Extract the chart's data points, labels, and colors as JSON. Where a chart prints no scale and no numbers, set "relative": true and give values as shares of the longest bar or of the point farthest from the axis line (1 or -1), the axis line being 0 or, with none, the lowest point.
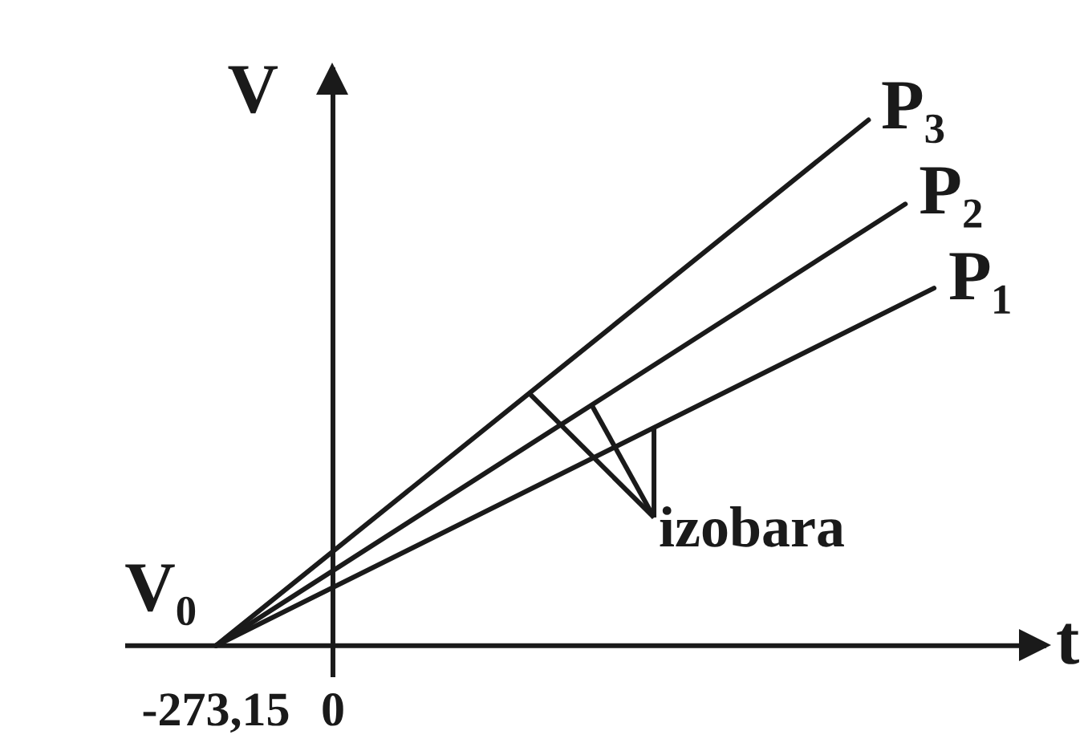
{
  "chart_data": {
    "type": "line",
    "relative": true,
    "xlabel": "t",
    "ylabel": "V",
    "xlim": [
      -485,
      1665
    ],
    "xticks": [
      {
        "value": -273.15,
        "label": "-273,15"
      },
      0
    ],
    "series": [
      {
        "name": "P₁",
        "color": "#1a1a1a",
        "x": [
          -273.15,
          1403
        ],
        "values": [
          0,
          0.68
        ]
      },
      {
        "name": "P₂",
        "color": "#1a1a1a",
        "x": [
          -273.15,
          1336
        ],
        "values": [
          0,
          0.84
        ]
      },
      {
        "name": "P₃",
        "color": "#1a1a1a",
        "x": [
          -273.15,
          1250
        ],
        "values": [
          0,
          1
        ]
      }
    ],
    "annotations": [
      "V₀",
      "izobara"
    ],
    "line_style": "solid"
  }
}
